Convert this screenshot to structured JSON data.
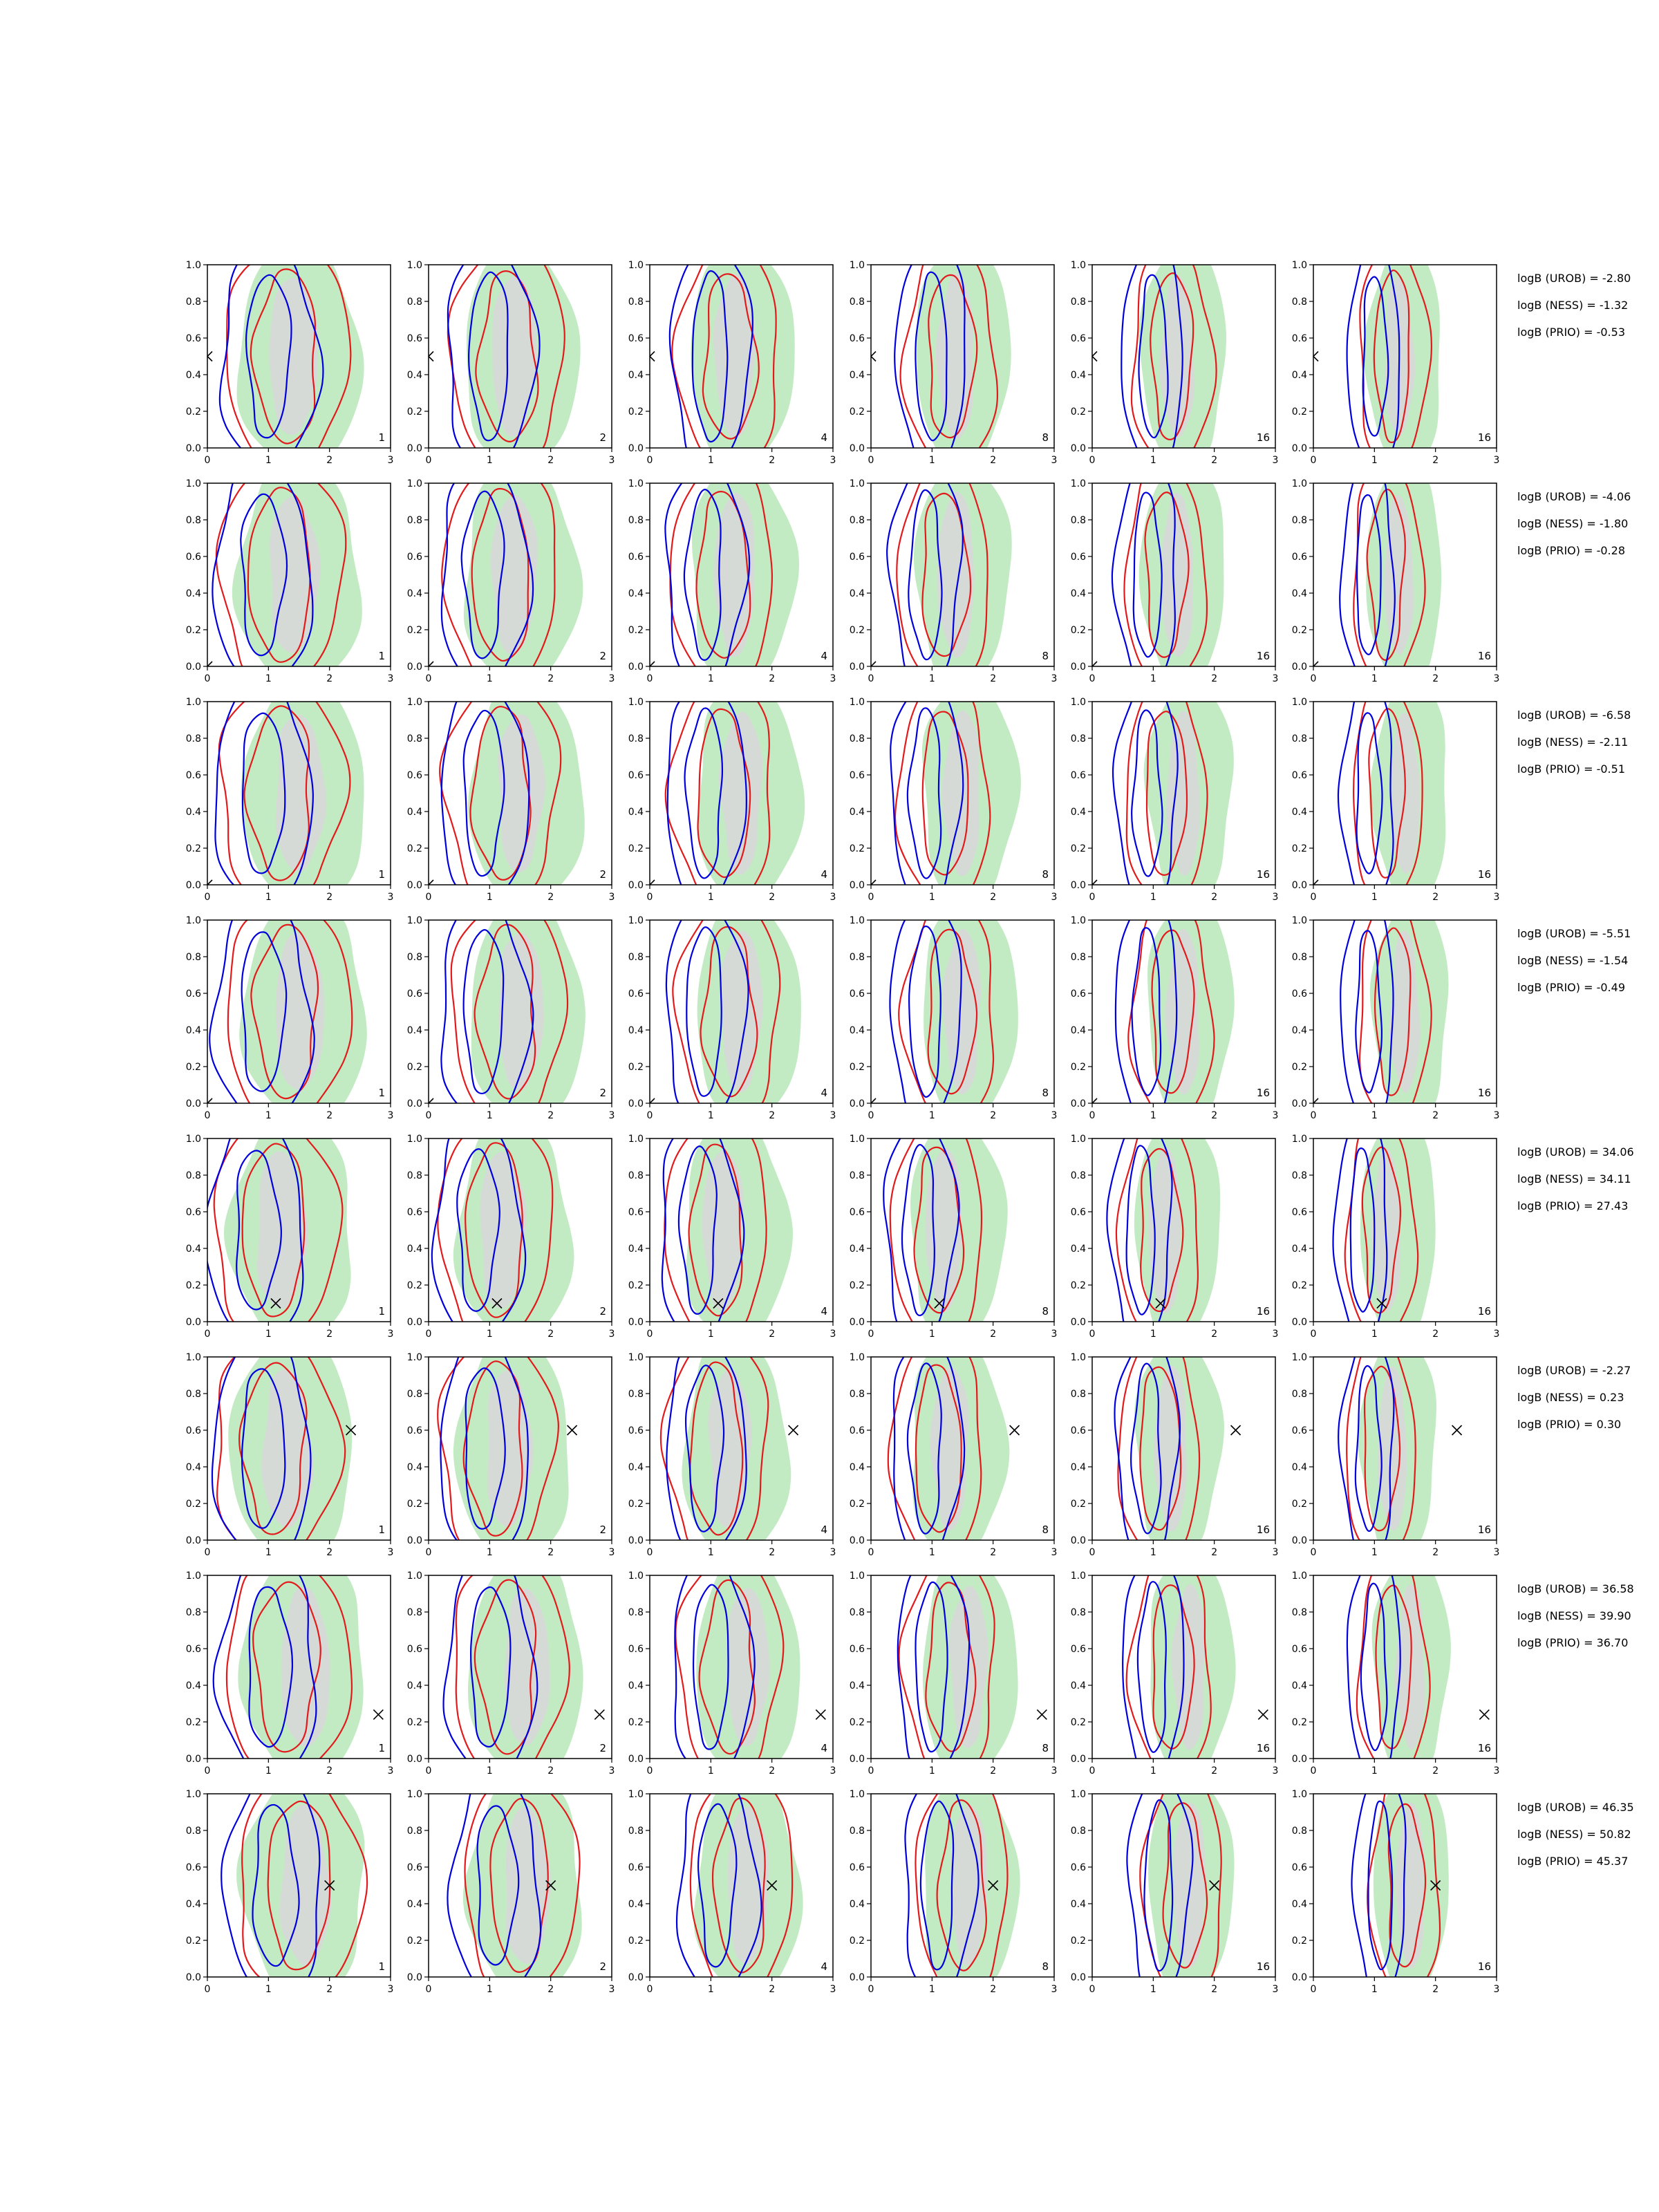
{
  "chart_data": {
    "type": "contour-grid",
    "rows": 8,
    "columns": 6,
    "x_ticks": [
      "0",
      "1",
      "2",
      "3"
    ],
    "y_ticks": [
      "0.0",
      "0.2",
      "0.4",
      "0.6",
      "0.8",
      "1.0"
    ],
    "xlim": [
      0,
      3
    ],
    "ylim": [
      0,
      1
    ],
    "column_labels": [
      "1",
      "2",
      "4",
      "8",
      "16",
      "16"
    ],
    "colors": {
      "filled_light": "#c3ebc3",
      "filled_dark": "#d8d8d8",
      "contour_red": "#e31a1c",
      "contour_blue": "#0000dd"
    },
    "stats": [
      {
        "urob": "logB (UROB) = -2.80",
        "ness": "logB (NESS) = -1.32",
        "prio": "logB (PRIO) = -0.53"
      },
      {
        "urob": "logB (UROB) = -4.06",
        "ness": "logB (NESS) = -1.80",
        "prio": "logB (PRIO) = -0.28"
      },
      {
        "urob": "logB (UROB) = -6.58",
        "ness": "logB (NESS) = -2.11",
        "prio": "logB (PRIO) = -0.51"
      },
      {
        "urob": "logB (UROB) = -5.51",
        "ness": "logB (NESS) = -1.54",
        "prio": "logB (PRIO) = -0.49"
      },
      {
        "urob": "logB (UROB) = 34.06",
        "ness": "logB (NESS) = 34.11",
        "prio": "logB (PRIO) = 27.43"
      },
      {
        "urob": "logB (UROB) = -2.27",
        "ness": "logB (NESS) = 0.23",
        "prio": "logB (PRIO) = 0.30"
      },
      {
        "urob": "logB (UROB) = 36.58",
        "ness": "logB (NESS) = 39.90",
        "prio": "logB (PRIO) = 36.70"
      },
      {
        "urob": "logB (UROB) = 46.35",
        "ness": "logB (NESS) = 50.82",
        "prio": "logB (PRIO) = 45.37"
      }
    ],
    "markers": [
      {
        "x": 0.0,
        "y": 0.5
      },
      {
        "x": 0.0,
        "y": 0.0
      },
      {
        "x": 0.0,
        "y": 0.0
      },
      {
        "x": 0.0,
        "y": 0.0
      },
      {
        "x": 1.12,
        "y": 0.1
      },
      {
        "x": 2.35,
        "y": 0.6
      },
      {
        "x": 2.8,
        "y": 0.24
      },
      {
        "x": 2.0,
        "y": 0.5
      }
    ],
    "density_centers": [
      {
        "green": 1.5,
        "grey": 1.4,
        "red": 1.3,
        "blue": 1.0
      },
      {
        "green": 1.5,
        "grey": 1.4,
        "red": 1.2,
        "blue": 0.9
      },
      {
        "green": 1.6,
        "grey": 1.5,
        "red": 1.2,
        "blue": 0.9
      },
      {
        "green": 1.6,
        "grey": 1.5,
        "red": 1.3,
        "blue": 0.9
      },
      {
        "green": 1.4,
        "grey": 1.2,
        "red": 1.1,
        "blue": 0.8
      },
      {
        "green": 1.4,
        "grey": 1.3,
        "red": 1.1,
        "blue": 0.9
      },
      {
        "green": 1.6,
        "grey": 1.6,
        "red": 1.3,
        "blue": 1.0
      },
      {
        "green": 1.6,
        "grey": 1.6,
        "red": 1.5,
        "blue": 1.1
      }
    ]
  }
}
